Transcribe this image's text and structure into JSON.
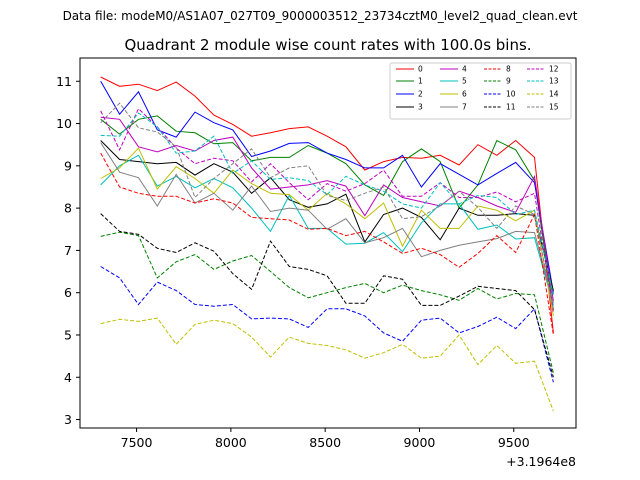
{
  "header": {
    "data_file": "Data file: modeM0/AS1A07_027T09_9000003512_23734cztM0_level2_quad_clean.evt"
  },
  "chart_data": {
    "type": "line",
    "title": "Quadrant 2 module wise count rates with 100.0s bins.",
    "xlabel": "",
    "ylabel": "",
    "x_offset_label": "+3.1964e8",
    "xlim": [
      7200,
      9830
    ],
    "ylim": [
      2.8,
      11.55
    ],
    "x_ticks": [
      7500,
      8000,
      8500,
      9000,
      9500
    ],
    "y_ticks": [
      3,
      4,
      5,
      6,
      7,
      8,
      9,
      10,
      11
    ],
    "grid": false,
    "legend_placement": "top-right",
    "x": [
      7310,
      7410,
      7510,
      7610,
      7710,
      7810,
      7910,
      8010,
      8110,
      8210,
      8310,
      8410,
      8510,
      8610,
      8710,
      8810,
      8910,
      9010,
      9110,
      9210,
      9310,
      9410,
      9510,
      9610,
      9710
    ],
    "series": [
      {
        "name": "0",
        "color": "#ff0000",
        "dash": "solid",
        "values": [
          11.1,
          10.88,
          10.93,
          10.78,
          10.98,
          10.65,
          10.2,
          9.98,
          9.7,
          9.78,
          9.88,
          9.92,
          9.7,
          9.45,
          8.9,
          9.1,
          9.2,
          9.18,
          9.25,
          9.02,
          9.5,
          9.25,
          9.6,
          9.2,
          5.05
        ]
      },
      {
        "name": "1",
        "color": "#008000",
        "dash": "solid",
        "values": [
          10.1,
          9.75,
          10.1,
          10.18,
          9.82,
          9.78,
          9.52,
          9.55,
          9.12,
          9.2,
          9.2,
          9.48,
          9.3,
          9.05,
          8.55,
          8.3,
          9.1,
          9.4,
          9.1,
          8.0,
          8.55,
          9.6,
          9.38,
          8.65,
          5.6
        ]
      },
      {
        "name": "2",
        "color": "#0000ff",
        "dash": "solid",
        "values": [
          11.0,
          10.22,
          10.75,
          9.85,
          9.68,
          10.27,
          10.02,
          9.85,
          9.22,
          9.35,
          9.53,
          9.55,
          9.3,
          9.15,
          8.95,
          8.95,
          9.25,
          8.5,
          9.05,
          8.8,
          8.55,
          8.82,
          9.08,
          8.6,
          6.0
        ]
      },
      {
        "name": "3",
        "color": "#000000",
        "dash": "solid",
        "values": [
          9.6,
          9.15,
          9.1,
          9.05,
          9.08,
          8.78,
          9.05,
          8.85,
          8.35,
          8.72,
          8.2,
          8.02,
          8.1,
          8.33,
          7.2,
          7.85,
          8.0,
          7.78,
          7.25,
          8.0,
          7.83,
          7.83,
          7.87,
          7.83,
          6.05
        ]
      },
      {
        "name": "4",
        "color": "#bf00bf",
        "dash": "solid",
        "values": [
          10.15,
          10.1,
          9.45,
          9.33,
          9.48,
          9.35,
          9.6,
          9.68,
          8.95,
          8.45,
          8.5,
          8.55,
          8.65,
          8.52,
          7.82,
          8.55,
          8.25,
          8.15,
          8.05,
          8.4,
          8.25,
          8.05,
          7.9,
          8.75,
          5.8
        ]
      },
      {
        "name": "5",
        "color": "#00bfbf",
        "dash": "solid",
        "values": [
          8.55,
          9.0,
          9.25,
          8.52,
          8.75,
          8.48,
          8.7,
          8.48,
          8.0,
          7.45,
          8.3,
          7.52,
          7.52,
          7.15,
          7.17,
          7.42,
          6.97,
          7.65,
          8.1,
          8.1,
          7.5,
          7.6,
          7.27,
          7.3,
          5.7
        ]
      },
      {
        "name": "6",
        "color": "#bfbf00",
        "dash": "solid",
        "values": [
          8.7,
          8.95,
          9.42,
          8.45,
          8.98,
          8.7,
          8.35,
          8.9,
          8.58,
          8.35,
          8.32,
          7.95,
          8.35,
          8.1,
          7.75,
          8.12,
          7.1,
          7.95,
          7.52,
          7.52,
          8.05,
          7.95,
          7.7,
          7.95,
          5.45
        ]
      },
      {
        "name": "7",
        "color": "#808080",
        "dash": "solid",
        "values": [
          9.55,
          8.85,
          8.72,
          8.05,
          8.8,
          8.12,
          8.35,
          7.95,
          8.52,
          7.92,
          8.0,
          7.95,
          7.5,
          7.75,
          7.18,
          7.3,
          7.52,
          6.85,
          7.0,
          7.12,
          7.2,
          7.28,
          7.45,
          7.42,
          5.75
        ]
      },
      {
        "name": "8",
        "color": "#ff0000",
        "dash": "dashed",
        "values": [
          9.3,
          8.5,
          8.35,
          8.28,
          8.28,
          8.12,
          8.22,
          8.12,
          7.78,
          7.75,
          7.72,
          7.5,
          7.52,
          7.35,
          7.45,
          7.2,
          6.93,
          7.05,
          6.9,
          6.6,
          6.93,
          7.35,
          6.95,
          7.85,
          5.0
        ]
      },
      {
        "name": "9",
        "color": "#008000",
        "dash": "dashed",
        "values": [
          7.33,
          7.43,
          7.35,
          6.35,
          6.73,
          6.9,
          6.55,
          6.75,
          6.88,
          6.5,
          6.12,
          5.88,
          6.0,
          6.12,
          6.22,
          6.0,
          6.18,
          6.05,
          5.95,
          5.82,
          6.1,
          5.85,
          5.98,
          5.95,
          4.1
        ]
      },
      {
        "name": "10",
        "color": "#0000ff",
        "dash": "dashed",
        "values": [
          6.62,
          6.35,
          5.72,
          6.25,
          6.05,
          5.72,
          5.68,
          5.72,
          5.38,
          5.4,
          5.38,
          5.18,
          5.62,
          5.62,
          5.45,
          5.05,
          4.85,
          5.35,
          5.4,
          5.05,
          5.2,
          5.42,
          5.15,
          5.62,
          3.88
        ]
      },
      {
        "name": "11",
        "color": "#000000",
        "dash": "dashed",
        "values": [
          7.87,
          7.45,
          7.38,
          7.05,
          6.95,
          7.18,
          6.98,
          6.45,
          6.08,
          7.22,
          6.62,
          6.55,
          6.4,
          5.75,
          5.75,
          6.4,
          6.32,
          5.7,
          5.7,
          5.92,
          6.15,
          6.1,
          6.05,
          5.6,
          4.0
        ]
      },
      {
        "name": "12",
        "color": "#bf00bf",
        "dash": "dashed",
        "values": [
          10.3,
          9.38,
          10.35,
          9.92,
          9.42,
          9.05,
          9.18,
          9.12,
          8.62,
          9.05,
          8.6,
          8.2,
          8.58,
          8.4,
          8.58,
          8.9,
          8.28,
          8.28,
          8.6,
          8.25,
          8.25,
          8.38,
          8.15,
          8.35,
          5.55
        ]
      },
      {
        "name": "13",
        "color": "#00bfbf",
        "dash": "dashed",
        "values": [
          9.72,
          9.7,
          10.25,
          9.92,
          9.3,
          9.35,
          9.7,
          8.82,
          9.12,
          8.68,
          8.72,
          8.65,
          8.32,
          8.75,
          8.55,
          8.4,
          8.1,
          8.0,
          8.6,
          8.1,
          8.3,
          8.25,
          7.85,
          7.95,
          5.95
        ]
      },
      {
        "name": "14",
        "color": "#bfbf00",
        "dash": "dashed",
        "values": [
          5.27,
          5.37,
          5.32,
          5.4,
          4.78,
          5.25,
          5.35,
          5.27,
          4.95,
          4.48,
          4.95,
          4.8,
          4.75,
          4.65,
          4.45,
          4.58,
          4.78,
          4.45,
          4.5,
          5.0,
          4.3,
          4.75,
          4.33,
          4.38,
          3.2
        ]
      },
      {
        "name": "15",
        "color": "#808080",
        "dash": "dashed",
        "values": [
          10.02,
          10.48,
          9.9,
          9.8,
          9.45,
          8.25,
          8.7,
          9.05,
          9.4,
          8.72,
          8.95,
          9.0,
          8.3,
          8.18,
          8.35,
          8.5,
          7.75,
          7.8,
          8.05,
          8.4,
          8.02,
          7.52,
          8.05,
          7.85,
          5.6
        ]
      }
    ]
  }
}
